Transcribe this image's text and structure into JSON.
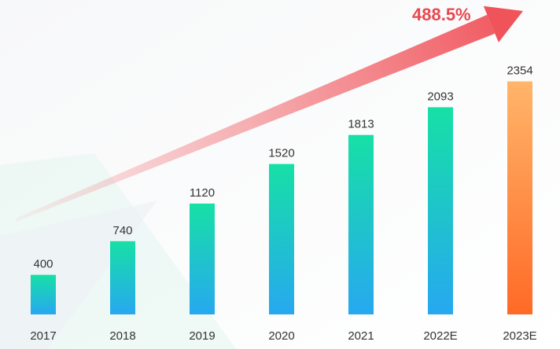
{
  "chart_data": {
    "type": "bar",
    "title": "",
    "xlabel": "",
    "ylabel": "",
    "categories": [
      "2017",
      "2018",
      "2019",
      "2020",
      "2021",
      "2022E",
      "2023E"
    ],
    "values": [
      400,
      740,
      1120,
      1520,
      1813,
      2093,
      2354
    ],
    "estimate_categories": [
      "2023E"
    ],
    "ylim": [
      0,
      2700
    ],
    "growth_annotation": "488.5%",
    "colors": {
      "bar_top": "#17e0a6",
      "bar_bottom": "#27a8f0",
      "estimate_top": "#ffb56a",
      "estimate_bottom": "#ff6a26",
      "arrow": "#f0545b",
      "growth_text": "#e8484f"
    }
  }
}
